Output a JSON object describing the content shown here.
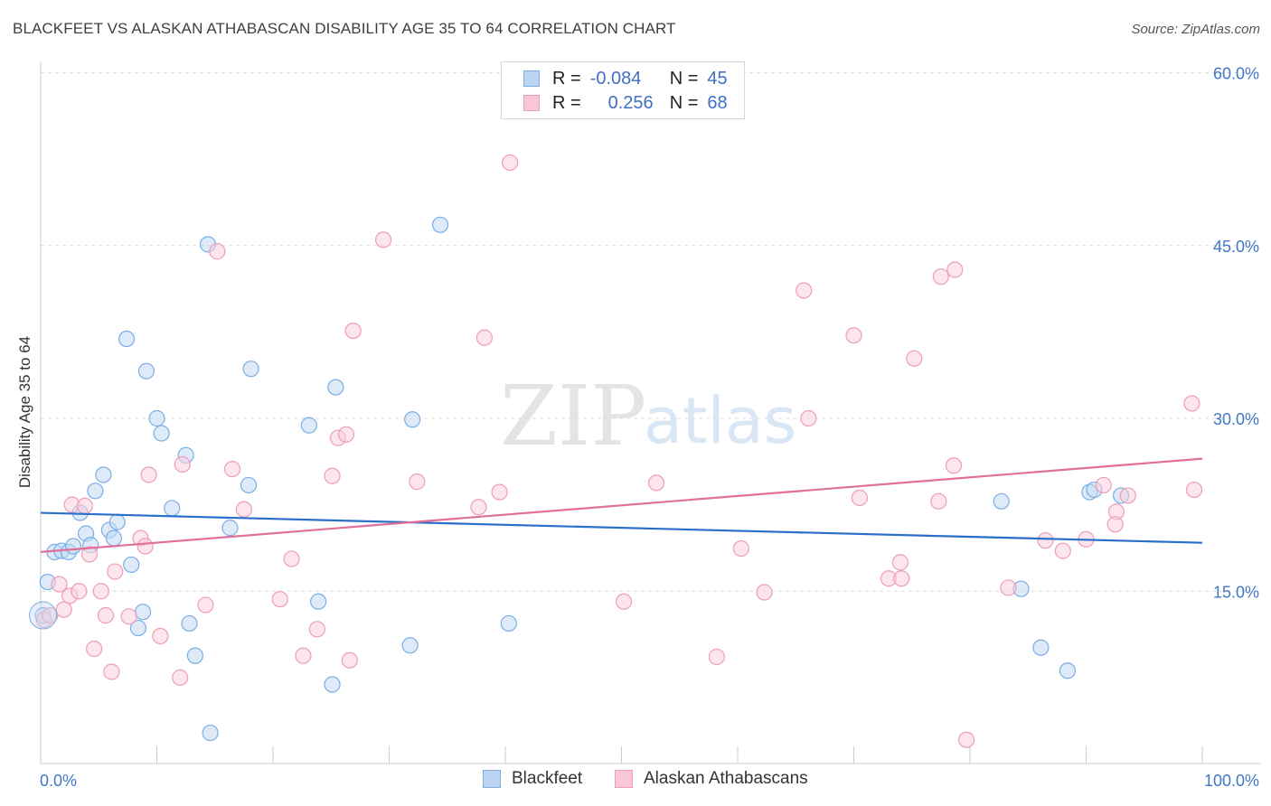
{
  "header": {
    "title": "BLACKFEET VS ALASKAN ATHABASCAN DISABILITY AGE 35 TO 64 CORRELATION CHART",
    "source": "Source: ZipAtlas.com"
  },
  "watermark": {
    "zip": "ZIP",
    "atlas": "atlas"
  },
  "legend": {
    "rows": [
      {
        "r_label": "R =",
        "r_value": "-0.084",
        "n_label": "N =",
        "n_value": "45",
        "color": "#7aaee6",
        "fill": "#bcd5f2"
      },
      {
        "r_label": "R =",
        "r_value": "0.256",
        "n_label": "N =",
        "n_value": "68",
        "color": "#ef9ab5",
        "fill": "#f8c8d6"
      }
    ]
  },
  "bottom_legend": [
    "Blackfeet",
    "Alaskan Athabascans"
  ],
  "colors": {
    "blue_point": "#7aaee6",
    "blue_fill": "#c2d9f3",
    "blue_line": "#2a6fc9",
    "pink_point": "#ee9db6",
    "pink_fill": "#f9d0dc",
    "pink_line": "#e0709a",
    "tick_text": "#3f78c8",
    "grid": "#dddddd"
  },
  "chart_data": {
    "type": "scatter",
    "title": "BLACKFEET VS ALASKAN ATHABASCAN DISABILITY AGE 35 TO 64 CORRELATION CHART",
    "xlabel": "",
    "ylabel": "Disability Age 35 to 64",
    "xlim": [
      0,
      100
    ],
    "ylim": [
      0,
      60
    ],
    "x_tick_labels": [
      "0.0%",
      "100.0%"
    ],
    "y_ticks": [
      15,
      30,
      45,
      60
    ],
    "y_tick_labels": [
      "15.0%",
      "30.0%",
      "45.0%",
      "60.0%"
    ],
    "grid": true,
    "legend_placement": "top-center",
    "series": [
      {
        "name": "Blackfeet",
        "trend": [
          [
            0,
            21.8
          ],
          [
            100,
            19.2
          ]
        ],
        "points": [
          [
            0.2,
            12.9
          ],
          [
            0.6,
            15.8
          ],
          [
            1.2,
            18.4
          ],
          [
            1.8,
            18.5
          ],
          [
            2.4,
            18.4
          ],
          [
            2.8,
            18.9
          ],
          [
            3.4,
            21.8
          ],
          [
            3.9,
            20.0
          ],
          [
            4.3,
            19.0
          ],
          [
            4.7,
            23.7
          ],
          [
            5.4,
            25.1
          ],
          [
            5.9,
            20.3
          ],
          [
            6.3,
            19.6
          ],
          [
            6.6,
            21.0
          ],
          [
            7.4,
            36.9
          ],
          [
            7.8,
            17.3
          ],
          [
            8.4,
            11.8
          ],
          [
            8.8,
            13.2
          ],
          [
            9.1,
            34.1
          ],
          [
            10.0,
            30.0
          ],
          [
            10.4,
            28.7
          ],
          [
            11.3,
            22.2
          ],
          [
            12.5,
            26.8
          ],
          [
            12.8,
            12.2
          ],
          [
            13.3,
            9.4
          ],
          [
            14.4,
            45.1
          ],
          [
            14.6,
            2.7
          ],
          [
            16.3,
            20.5
          ],
          [
            17.9,
            24.2
          ],
          [
            18.1,
            34.3
          ],
          [
            23.1,
            29.4
          ],
          [
            23.9,
            14.1
          ],
          [
            25.4,
            32.7
          ],
          [
            25.1,
            6.9
          ],
          [
            31.8,
            10.3
          ],
          [
            32.0,
            29.9
          ],
          [
            34.4,
            46.8
          ],
          [
            40.3,
            12.2
          ],
          [
            82.7,
            22.8
          ],
          [
            84.4,
            15.2
          ],
          [
            86.1,
            10.1
          ],
          [
            88.4,
            8.1
          ],
          [
            90.3,
            23.6
          ],
          [
            90.7,
            23.8
          ],
          [
            93.0,
            23.3
          ]
        ]
      },
      {
        "name": "Alaskan Athabascans",
        "trend": [
          [
            0,
            18.4
          ],
          [
            100,
            26.5
          ]
        ],
        "points": [
          [
            0.3,
            12.5
          ],
          [
            0.8,
            12.9
          ],
          [
            1.6,
            15.6
          ],
          [
            2.0,
            13.4
          ],
          [
            2.5,
            14.6
          ],
          [
            2.7,
            22.5
          ],
          [
            3.3,
            15.0
          ],
          [
            3.8,
            22.4
          ],
          [
            4.2,
            18.2
          ],
          [
            4.6,
            10.0
          ],
          [
            5.2,
            15.0
          ],
          [
            5.6,
            12.9
          ],
          [
            6.1,
            8.0
          ],
          [
            6.4,
            16.7
          ],
          [
            7.6,
            12.8
          ],
          [
            8.6,
            19.6
          ],
          [
            9.0,
            18.9
          ],
          [
            9.3,
            25.1
          ],
          [
            10.3,
            11.1
          ],
          [
            12.0,
            7.5
          ],
          [
            12.2,
            26.0
          ],
          [
            14.2,
            13.8
          ],
          [
            15.2,
            44.5
          ],
          [
            16.5,
            25.6
          ],
          [
            17.5,
            22.1
          ],
          [
            20.6,
            14.3
          ],
          [
            21.6,
            17.8
          ],
          [
            22.6,
            9.4
          ],
          [
            23.8,
            11.7
          ],
          [
            25.1,
            25.0
          ],
          [
            25.6,
            28.3
          ],
          [
            26.3,
            28.6
          ],
          [
            26.9,
            37.6
          ],
          [
            26.6,
            9.0
          ],
          [
            29.5,
            45.5
          ],
          [
            32.4,
            24.5
          ],
          [
            37.7,
            22.3
          ],
          [
            38.2,
            37.0
          ],
          [
            39.5,
            23.6
          ],
          [
            40.4,
            52.2
          ],
          [
            50.2,
            14.1
          ],
          [
            53.0,
            24.4
          ],
          [
            58.2,
            9.3
          ],
          [
            60.3,
            18.7
          ],
          [
            62.3,
            14.9
          ],
          [
            65.7,
            41.1
          ],
          [
            66.1,
            30.0
          ],
          [
            70.0,
            37.2
          ],
          [
            70.5,
            23.1
          ],
          [
            73.0,
            16.1
          ],
          [
            74.0,
            17.5
          ],
          [
            74.1,
            16.1
          ],
          [
            75.2,
            35.2
          ],
          [
            77.3,
            22.8
          ],
          [
            77.5,
            42.3
          ],
          [
            78.7,
            42.9
          ],
          [
            78.6,
            25.9
          ],
          [
            79.7,
            2.1
          ],
          [
            83.3,
            15.3
          ],
          [
            86.5,
            19.4
          ],
          [
            88.0,
            18.5
          ],
          [
            90.0,
            19.5
          ],
          [
            91.5,
            24.2
          ],
          [
            92.6,
            21.9
          ],
          [
            92.5,
            20.8
          ],
          [
            93.6,
            23.3
          ],
          [
            99.1,
            31.3
          ],
          [
            99.3,
            23.8
          ]
        ]
      }
    ]
  }
}
